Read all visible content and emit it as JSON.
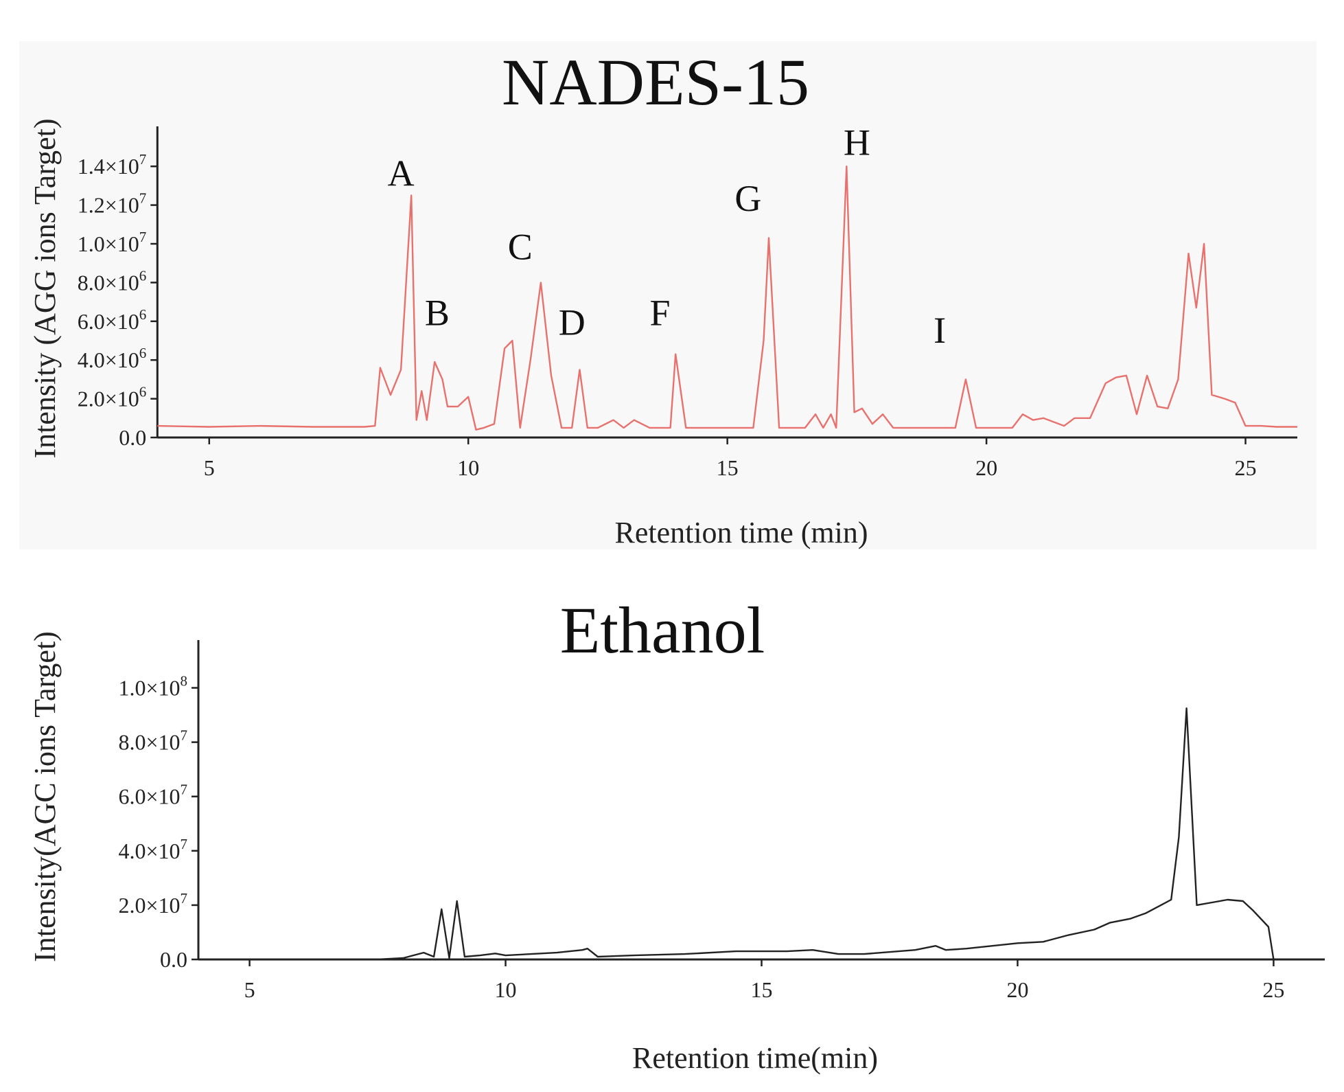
{
  "chart_data": [
    {
      "type": "line",
      "title": "NADES-15",
      "xlabel": "Retention time (min)",
      "ylabel": "Intensity (AGG ions Target)",
      "xlim": [
        4,
        26
      ],
      "ylim": [
        0,
        15000000
      ],
      "x_ticks": [
        5,
        10,
        15,
        20,
        25
      ],
      "y_ticks": [
        {
          "value": 0,
          "mant": "0.0",
          "exp": ""
        },
        {
          "value": 2000000,
          "mant": "2.0×10",
          "exp": "6"
        },
        {
          "value": 4000000,
          "mant": "4.0×10",
          "exp": "6"
        },
        {
          "value": 6000000,
          "mant": "6.0×10",
          "exp": "6"
        },
        {
          "value": 8000000,
          "mant": "8.0×10",
          "exp": "6"
        },
        {
          "value": 10000000,
          "mant": "1.0×10",
          "exp": "7"
        },
        {
          "value": 12000000,
          "mant": "1.2×10",
          "exp": "7"
        },
        {
          "value": 14000000,
          "mant": "1.4×10",
          "exp": "7"
        }
      ],
      "line_color": "#e8716e",
      "grid": false,
      "series": [
        {
          "x": [
            4.0,
            5.0,
            6.0,
            7.0,
            8.0,
            8.2,
            8.3,
            8.5,
            8.7,
            8.9,
            9.0,
            9.1,
            9.2,
            9.35,
            9.5,
            9.6,
            9.8,
            10.0,
            10.15,
            10.3,
            10.5,
            10.7,
            10.85,
            11.0,
            11.2,
            11.4,
            11.6,
            11.8,
            12.0,
            12.15,
            12.3,
            12.5,
            12.8,
            13.0,
            13.2,
            13.5,
            13.9,
            14.0,
            14.2,
            14.5,
            15.0,
            15.5,
            15.7,
            15.8,
            16.0,
            16.5,
            16.7,
            16.85,
            17.0,
            17.1,
            17.3,
            17.45,
            17.6,
            17.8,
            18.0,
            18.2,
            18.5,
            19.0,
            19.4,
            19.6,
            19.8,
            20.5,
            20.7,
            20.9,
            21.1,
            21.5,
            21.7,
            22.0,
            22.3,
            22.5,
            22.7,
            22.9,
            23.1,
            23.3,
            23.5,
            23.7,
            23.9,
            24.05,
            24.2,
            24.35,
            24.6,
            24.8,
            25.0,
            25.3,
            25.6,
            26.0
          ],
          "y": [
            600000,
            550000,
            600000,
            550000,
            550000,
            600000,
            3600000,
            2200000,
            3500000,
            12500000,
            900000,
            2400000,
            900000,
            3900000,
            3000000,
            1600000,
            1600000,
            2100000,
            400000,
            500000,
            700000,
            4600000,
            5000000,
            500000,
            4000000,
            8000000,
            3200000,
            500000,
            500000,
            3500000,
            500000,
            500000,
            900000,
            500000,
            900000,
            500000,
            500000,
            4300000,
            500000,
            500000,
            500000,
            500000,
            5000000,
            10300000,
            500000,
            500000,
            1200000,
            500000,
            1200000,
            500000,
            14000000,
            1300000,
            1500000,
            700000,
            1200000,
            500000,
            500000,
            500000,
            500000,
            3000000,
            500000,
            500000,
            1200000,
            900000,
            1000000,
            600000,
            1000000,
            1000000,
            2800000,
            3100000,
            3200000,
            1200000,
            3200000,
            1600000,
            1500000,
            3000000,
            9500000,
            6700000,
            10000000,
            2200000,
            2000000,
            1800000,
            600000,
            600000,
            550000,
            550000
          ]
        }
      ],
      "annotations": [
        {
          "text": "A",
          "x": 8.7,
          "y": 13000000
        },
        {
          "text": "B",
          "x": 9.4,
          "y": 5800000
        },
        {
          "text": "C",
          "x": 11.0,
          "y": 9200000
        },
        {
          "text": "D",
          "x": 12.0,
          "y": 5300000
        },
        {
          "text": "F",
          "x": 13.7,
          "y": 5800000
        },
        {
          "text": "G",
          "x": 15.4,
          "y": 11700000
        },
        {
          "text": "H",
          "x": 17.5,
          "y": 14600000
        },
        {
          "text": "I",
          "x": 19.1,
          "y": 4900000
        }
      ]
    },
    {
      "type": "line",
      "title": "Ethanol",
      "xlabel": "Retention time(min)",
      "ylabel": "Intensity(AGC ions Target)",
      "xlim": [
        4,
        26
      ],
      "ylim": [
        0,
        110000000
      ],
      "x_ticks": [
        5,
        10,
        15,
        20,
        25
      ],
      "y_ticks": [
        {
          "value": 0,
          "mant": "0.0",
          "exp": ""
        },
        {
          "value": 20000000,
          "mant": "2.0×10",
          "exp": "7"
        },
        {
          "value": 40000000,
          "mant": "4.0×10",
          "exp": "7"
        },
        {
          "value": 60000000,
          "mant": "6.0×10",
          "exp": "7"
        },
        {
          "value": 80000000,
          "mant": "8.0×10",
          "exp": "7"
        },
        {
          "value": 100000000,
          "mant": "1.0×10",
          "exp": "8"
        }
      ],
      "line_color": "#222222",
      "grid": false,
      "series": [
        {
          "x": [
            5.0,
            7.5,
            8.0,
            8.4,
            8.6,
            8.75,
            8.9,
            9.05,
            9.2,
            9.5,
            9.8,
            10.0,
            10.5,
            11.0,
            11.5,
            11.6,
            11.8,
            12.5,
            13.5,
            14.5,
            15.5,
            16.0,
            16.5,
            17.0,
            18.0,
            18.4,
            18.6,
            19.0,
            20.0,
            20.5,
            21.0,
            21.5,
            21.8,
            22.2,
            22.5,
            22.8,
            23.0,
            23.15,
            23.3,
            23.5,
            23.8,
            24.1,
            24.4,
            24.6,
            24.9,
            25.0
          ],
          "y": [
            0,
            0,
            500000,
            2500000,
            1000000,
            18500000,
            500000,
            21500000,
            1000000,
            1500000,
            2200000,
            1500000,
            2000000,
            2500000,
            3500000,
            4000000,
            1000000,
            1500000,
            2000000,
            3000000,
            3000000,
            3500000,
            2000000,
            2000000,
            3500000,
            5000000,
            3500000,
            4000000,
            6000000,
            6500000,
            9000000,
            11000000,
            13500000,
            15000000,
            17000000,
            20000000,
            22000000,
            45000000,
            92500000,
            20000000,
            21000000,
            22000000,
            21500000,
            18000000,
            12000000,
            0
          ]
        }
      ],
      "annotations": []
    }
  ]
}
